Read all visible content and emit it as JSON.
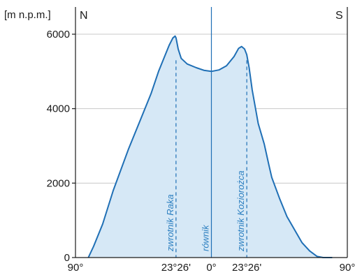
{
  "chart_data": {
    "type": "area",
    "ylabel": "[m n.p.m.]",
    "ylim": [
      0,
      6000
    ],
    "yticks": [
      0,
      2000,
      4000,
      6000
    ],
    "ytick_labels": [
      "0",
      "2000",
      "4000",
      "6000"
    ],
    "xlim": [
      -90,
      90
    ],
    "x_ticks": [
      {
        "value": -90,
        "label": "90°"
      },
      {
        "value": -23.43,
        "label": "23°26'"
      },
      {
        "value": 0,
        "label": "0°"
      },
      {
        "value": 23.43,
        "label": "23°26'"
      },
      {
        "value": 90,
        "label": "90°"
      }
    ],
    "direction_left": "N",
    "direction_right": "S",
    "grid": true,
    "colors": {
      "line": "#1f6fb5",
      "fill": "#d6e8f6",
      "grid": "#c8c8c8",
      "axis": "#1a1a1a"
    },
    "series": [
      {
        "x": [
          -81.5,
          -78,
          -72,
          -65,
          -55,
          -47,
          -40,
          -35,
          -31,
          -28,
          -25.5,
          -24,
          -23.4,
          -22,
          -20,
          -16,
          -10,
          -5,
          0,
          5,
          10,
          15,
          18,
          20,
          22,
          23.4,
          25,
          27,
          31,
          35,
          38,
          40,
          45,
          50,
          55,
          60,
          65,
          70,
          74,
          77,
          80
        ],
        "y": [
          0,
          300,
          900,
          1800,
          2900,
          3700,
          4400,
          5000,
          5400,
          5700,
          5900,
          5950,
          5900,
          5600,
          5350,
          5200,
          5100,
          5030,
          5000,
          5040,
          5150,
          5400,
          5620,
          5670,
          5600,
          5450,
          5100,
          4500,
          3600,
          3050,
          2500,
          2150,
          1600,
          1100,
          750,
          400,
          180,
          30,
          0,
          0,
          0
        ]
      }
    ],
    "verticals": [
      {
        "x": -23.43,
        "style": "dashed",
        "label": "zwrotnik Raka"
      },
      {
        "x": 0,
        "style": "solid",
        "label": "równik"
      },
      {
        "x": 23.43,
        "style": "dashed",
        "label": "zwrotnik Koziorożca"
      }
    ]
  }
}
